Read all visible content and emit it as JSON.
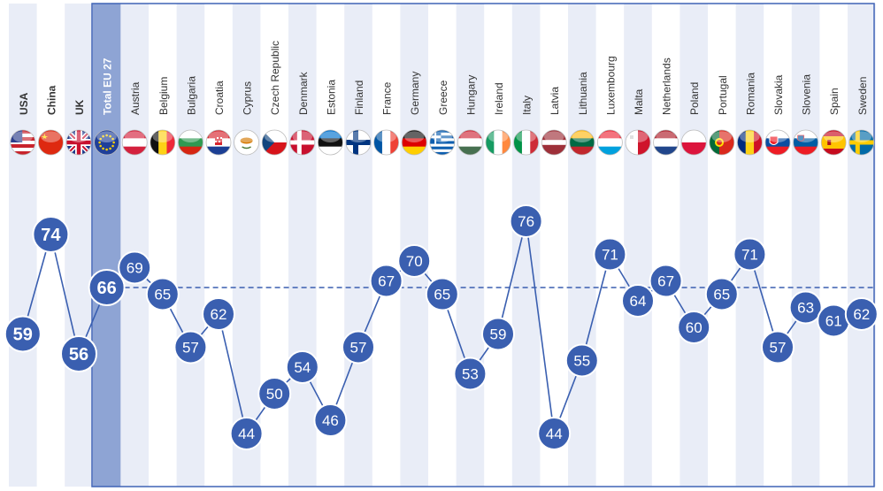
{
  "chart_data": {
    "type": "line",
    "categories": [
      "USA",
      "China",
      "UK",
      "Total EU 27",
      "Austria",
      "Belgium",
      "Bulgaria",
      "Croatia",
      "Cyprus",
      "Czech Republic",
      "Denmark",
      "Estonia",
      "Finland",
      "France",
      "Germany",
      "Greece",
      "Hungary",
      "Ireland",
      "Italy",
      "Latvia",
      "Lithuania",
      "Luxembourg",
      "Malta",
      "Netherlands",
      "Poland",
      "Portugal",
      "Romania",
      "Slovakia",
      "Slovenia",
      "Spain",
      "Sweden"
    ],
    "bold_categories": [
      "USA",
      "China",
      "UK",
      "Total EU 27"
    ],
    "series": [
      {
        "values": [
          59,
          74,
          56,
          66,
          69,
          65,
          57,
          62,
          44,
          50,
          54,
          46,
          57,
          67,
          70,
          65,
          53,
          59,
          76,
          44,
          55,
          71,
          64,
          67,
          60,
          65,
          71,
          57,
          63,
          61,
          62
        ]
      }
    ],
    "reference_line": {
      "value": 66,
      "style": "dashed"
    },
    "flags": [
      "us-flag-icon",
      "china-flag-icon",
      "uk-flag-icon",
      "eu-flag-icon",
      "austria-flag-icon",
      "belgium-flag-icon",
      "bulgaria-flag-icon",
      "croatia-flag-icon",
      "cyprus-flag-icon",
      "czech-republic-flag-icon",
      "denmark-flag-icon",
      "estonia-flag-icon",
      "finland-flag-icon",
      "france-flag-icon",
      "germany-flag-icon",
      "greece-flag-icon",
      "hungary-flag-icon",
      "ireland-flag-icon",
      "italy-flag-icon",
      "latvia-flag-icon",
      "lithuania-flag-icon",
      "luxembourg-flag-icon",
      "malta-flag-icon",
      "netherlands-flag-icon",
      "poland-flag-icon",
      "portugal-flag-icon",
      "romania-flag-icon",
      "slovakia-flag-icon",
      "slovenia-flag-icon",
      "spain-flag-icon",
      "sweden-flag-icon"
    ],
    "colors": {
      "marker": "#3a5fb0",
      "line": "#3a5fb0",
      "eu_highlight": "#8ea4d4",
      "stripe": "#e9edf7",
      "frame": "#3f63b6"
    },
    "ylim": [
      40,
      80
    ]
  }
}
